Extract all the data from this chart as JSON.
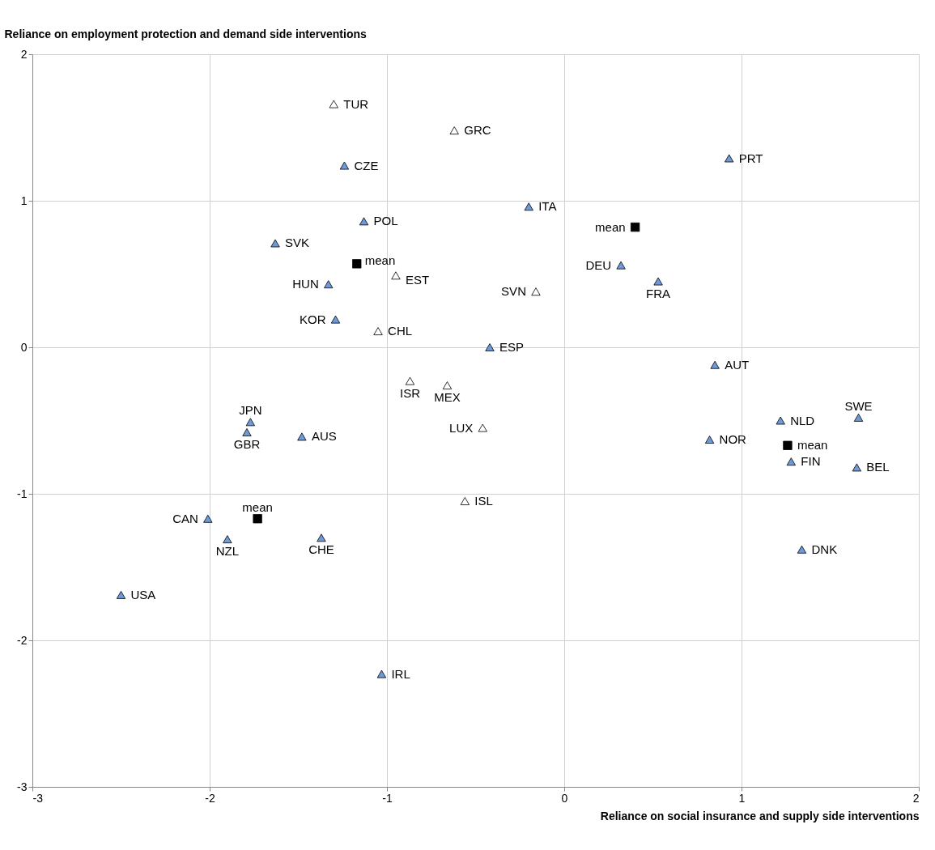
{
  "chart_data": {
    "type": "scatter",
    "xlabel": "Reliance on social insurance and supply side interventions",
    "ylabel": "Reliance on employment protection and demand side interventions",
    "xlim": [
      -3,
      2
    ],
    "xticks": [
      -3,
      -2,
      -1,
      0,
      1,
      2
    ],
    "ylim": [
      -3,
      2
    ],
    "yticks": [
      -3,
      -2,
      -1,
      0,
      1,
      2
    ],
    "grid": true,
    "series": [
      {
        "color": "#6f9ad8",
        "marker": "triangle",
        "x": [
          -1.24,
          -1.13,
          -1.63,
          -1.33,
          -1.29,
          -0.42,
          -0.2,
          0.32,
          0.53,
          0.93,
          0.85,
          1.22,
          1.66,
          0.82,
          1.28,
          1.65,
          1.34,
          -1.77,
          -1.79,
          -1.48,
          -2.01,
          -1.9,
          -1.37,
          -2.5,
          -1.03
        ],
        "values": [
          1.24,
          0.86,
          0.71,
          0.43,
          0.19,
          0.0,
          0.96,
          0.56,
          0.45,
          1.29,
          -0.12,
          -0.5,
          -0.48,
          -0.63,
          -0.78,
          -0.82,
          -1.38,
          -0.51,
          -0.58,
          -0.61,
          -1.17,
          -1.31,
          -1.3,
          -1.69,
          -2.23
        ]
      },
      {
        "color": "#ffffff",
        "marker": "triangle",
        "x": [
          -1.3,
          -0.62,
          -0.95,
          -0.16,
          -1.05,
          -0.87,
          -0.66,
          -0.46,
          -0.56
        ],
        "values": [
          1.66,
          1.48,
          0.49,
          0.38,
          0.11,
          -0.23,
          -0.26,
          -0.55,
          -1.05
        ]
      },
      {
        "color": "#000000",
        "marker": "square",
        "x": [
          -1.17,
          0.4,
          1.26,
          -1.73
        ],
        "values": [
          0.57,
          0.82,
          -0.67,
          -1.17
        ]
      }
    ],
    "annotations": [
      {
        "text": "CZE",
        "x": -1.24,
        "y": 1.24
      },
      {
        "text": "POL",
        "x": -1.13,
        "y": 0.86
      },
      {
        "text": "SVK",
        "x": -1.63,
        "y": 0.71
      },
      {
        "text": "HUN",
        "x": -1.33,
        "y": 0.43
      },
      {
        "text": "KOR",
        "x": -1.29,
        "y": 0.19
      },
      {
        "text": "ESP",
        "x": -0.42,
        "y": 0.0
      },
      {
        "text": "ITA",
        "x": -0.2,
        "y": 0.96
      },
      {
        "text": "DEU",
        "x": 0.32,
        "y": 0.56
      },
      {
        "text": "FRA",
        "x": 0.53,
        "y": 0.45
      },
      {
        "text": "PRT",
        "x": 0.93,
        "y": 1.29
      },
      {
        "text": "AUT",
        "x": 0.85,
        "y": -0.12
      },
      {
        "text": "NLD",
        "x": 1.22,
        "y": -0.5
      },
      {
        "text": "SWE",
        "x": 1.66,
        "y": -0.48
      },
      {
        "text": "NOR",
        "x": 0.82,
        "y": -0.63
      },
      {
        "text": "FIN",
        "x": 1.28,
        "y": -0.78
      },
      {
        "text": "BEL",
        "x": 1.65,
        "y": -0.82
      },
      {
        "text": "DNK",
        "x": 1.34,
        "y": -1.38
      },
      {
        "text": "JPN",
        "x": -1.77,
        "y": -0.51
      },
      {
        "text": "GBR",
        "x": -1.79,
        "y": -0.58
      },
      {
        "text": "AUS",
        "x": -1.48,
        "y": -0.61
      },
      {
        "text": "CAN",
        "x": -2.01,
        "y": -1.17
      },
      {
        "text": "NZL",
        "x": -1.9,
        "y": -1.31
      },
      {
        "text": "CHE",
        "x": -1.37,
        "y": -1.3
      },
      {
        "text": "USA",
        "x": -2.5,
        "y": -1.69
      },
      {
        "text": "IRL",
        "x": -1.03,
        "y": -2.23
      },
      {
        "text": "TUR",
        "x": -1.3,
        "y": 1.66
      },
      {
        "text": "GRC",
        "x": -0.62,
        "y": 1.48
      },
      {
        "text": "EST",
        "x": -0.95,
        "y": 0.49
      },
      {
        "text": "SVN",
        "x": -0.16,
        "y": 0.38
      },
      {
        "text": "CHL",
        "x": -1.05,
        "y": 0.11
      },
      {
        "text": "ISR",
        "x": -0.87,
        "y": -0.23
      },
      {
        "text": "MEX",
        "x": -0.66,
        "y": -0.26
      },
      {
        "text": "LUX",
        "x": -0.46,
        "y": -0.55
      },
      {
        "text": "ISL",
        "x": -0.56,
        "y": -1.05
      },
      {
        "text": "mean",
        "x": -1.17,
        "y": 0.57
      },
      {
        "text": "mean",
        "x": 0.4,
        "y": 0.82
      },
      {
        "text": "mean",
        "x": 1.26,
        "y": -0.67
      },
      {
        "text": "mean",
        "x": -1.73,
        "y": -1.17
      }
    ]
  }
}
